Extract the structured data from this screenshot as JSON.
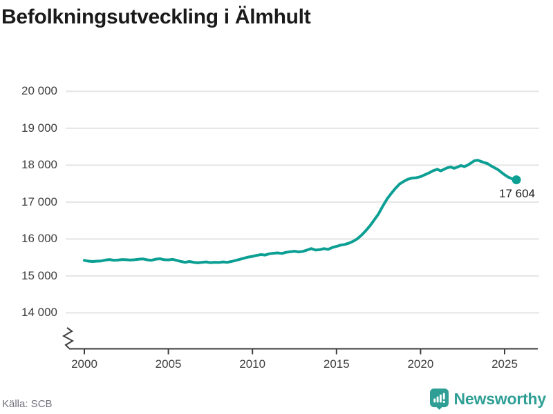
{
  "title": "Befolkningsutveckling i Älmhult",
  "source": "Källa: SCB",
  "branding": {
    "name": "Newsworthy",
    "icon": "newsworthy-chart-bubble-icon"
  },
  "colors": {
    "background": "#ffffff",
    "line": "#0c9f93",
    "grid": "#e4e4e4",
    "axis": "#3d3d3d",
    "tick_label": "#3f3f3f",
    "title_text": "#1a1a1a",
    "annotation_text": "#1a1a1a",
    "source_text": "#71717c",
    "brand_teal": "#2f9f95"
  },
  "chart_data": {
    "type": "line",
    "title": "Befolkningsutveckling i Älmhult",
    "xlabel": "",
    "ylabel": "",
    "grid": "horizontal",
    "legend": "none",
    "axis_break_at_bottom": true,
    "ylim": [
      14000,
      20000
    ],
    "xlim": [
      2000,
      2025.7
    ],
    "x_axis": {
      "ticks": [
        {
          "value": 2000,
          "label": "2000"
        },
        {
          "value": 2005,
          "label": "2005"
        },
        {
          "value": 2010,
          "label": "2010"
        },
        {
          "value": 2015,
          "label": "2015"
        },
        {
          "value": 2020,
          "label": "2020"
        },
        {
          "value": 2025,
          "label": "2025"
        }
      ]
    },
    "y_axis": {
      "ticks": [
        {
          "value": 14000,
          "label": "14 000"
        },
        {
          "value": 15000,
          "label": "15 000"
        },
        {
          "value": 16000,
          "label": "16 000"
        },
        {
          "value": 17000,
          "label": "17 000"
        },
        {
          "value": 18000,
          "label": "18 000"
        },
        {
          "value": 19000,
          "label": "19 000"
        },
        {
          "value": 20000,
          "label": "20 000"
        }
      ]
    },
    "end_point": {
      "x": 2025.7,
      "value": 17604,
      "label": "17 604"
    },
    "series": [
      {
        "name": "Befolkning",
        "points": [
          [
            2000.0,
            15420
          ],
          [
            2000.25,
            15400
          ],
          [
            2000.5,
            15390
          ],
          [
            2000.75,
            15400
          ],
          [
            2001.0,
            15405
          ],
          [
            2001.25,
            15430
          ],
          [
            2001.5,
            15445
          ],
          [
            2001.75,
            15425
          ],
          [
            2002.0,
            15430
          ],
          [
            2002.25,
            15445
          ],
          [
            2002.5,
            15440
          ],
          [
            2002.75,
            15430
          ],
          [
            2003.0,
            15440
          ],
          [
            2003.25,
            15455
          ],
          [
            2003.5,
            15460
          ],
          [
            2003.75,
            15435
          ],
          [
            2004.0,
            15425
          ],
          [
            2004.25,
            15455
          ],
          [
            2004.5,
            15465
          ],
          [
            2004.75,
            15440
          ],
          [
            2005.0,
            15435
          ],
          [
            2005.25,
            15450
          ],
          [
            2005.5,
            15420
          ],
          [
            2005.75,
            15390
          ],
          [
            2006.0,
            15370
          ],
          [
            2006.25,
            15390
          ],
          [
            2006.5,
            15370
          ],
          [
            2006.75,
            15355
          ],
          [
            2007.0,
            15370
          ],
          [
            2007.25,
            15380
          ],
          [
            2007.5,
            15360
          ],
          [
            2007.75,
            15370
          ],
          [
            2008.0,
            15365
          ],
          [
            2008.25,
            15380
          ],
          [
            2008.5,
            15370
          ],
          [
            2008.75,
            15390
          ],
          [
            2009.0,
            15420
          ],
          [
            2009.25,
            15450
          ],
          [
            2009.5,
            15480
          ],
          [
            2009.75,
            15510
          ],
          [
            2010.0,
            15530
          ],
          [
            2010.25,
            15555
          ],
          [
            2010.5,
            15580
          ],
          [
            2010.75,
            15565
          ],
          [
            2011.0,
            15600
          ],
          [
            2011.25,
            15615
          ],
          [
            2011.5,
            15625
          ],
          [
            2011.75,
            15610
          ],
          [
            2012.0,
            15640
          ],
          [
            2012.25,
            15655
          ],
          [
            2012.5,
            15670
          ],
          [
            2012.75,
            15650
          ],
          [
            2013.0,
            15665
          ],
          [
            2013.25,
            15700
          ],
          [
            2013.5,
            15740
          ],
          [
            2013.75,
            15700
          ],
          [
            2014.0,
            15710
          ],
          [
            2014.25,
            15740
          ],
          [
            2014.5,
            15720
          ],
          [
            2014.75,
            15770
          ],
          [
            2015.0,
            15800
          ],
          [
            2015.25,
            15835
          ],
          [
            2015.5,
            15855
          ],
          [
            2015.75,
            15890
          ],
          [
            2016.0,
            15940
          ],
          [
            2016.25,
            16010
          ],
          [
            2016.5,
            16110
          ],
          [
            2016.75,
            16230
          ],
          [
            2017.0,
            16360
          ],
          [
            2017.25,
            16520
          ],
          [
            2017.5,
            16680
          ],
          [
            2017.75,
            16890
          ],
          [
            2018.0,
            17080
          ],
          [
            2018.25,
            17230
          ],
          [
            2018.5,
            17370
          ],
          [
            2018.75,
            17490
          ],
          [
            2019.0,
            17560
          ],
          [
            2019.25,
            17620
          ],
          [
            2019.5,
            17650
          ],
          [
            2019.75,
            17660
          ],
          [
            2020.0,
            17690
          ],
          [
            2020.25,
            17740
          ],
          [
            2020.5,
            17790
          ],
          [
            2020.75,
            17850
          ],
          [
            2021.0,
            17890
          ],
          [
            2021.2,
            17845
          ],
          [
            2021.4,
            17890
          ],
          [
            2021.6,
            17930
          ],
          [
            2021.8,
            17950
          ],
          [
            2022.0,
            17915
          ],
          [
            2022.2,
            17950
          ],
          [
            2022.4,
            17990
          ],
          [
            2022.6,
            17960
          ],
          [
            2022.8,
            18000
          ],
          [
            2023.0,
            18060
          ],
          [
            2023.2,
            18120
          ],
          [
            2023.4,
            18135
          ],
          [
            2023.6,
            18100
          ],
          [
            2023.8,
            18070
          ],
          [
            2024.0,
            18040
          ],
          [
            2024.2,
            17980
          ],
          [
            2024.4,
            17930
          ],
          [
            2024.6,
            17880
          ],
          [
            2024.8,
            17810
          ],
          [
            2025.0,
            17740
          ],
          [
            2025.2,
            17680
          ],
          [
            2025.4,
            17640
          ],
          [
            2025.55,
            17615
          ],
          [
            2025.7,
            17604
          ]
        ]
      }
    ]
  }
}
